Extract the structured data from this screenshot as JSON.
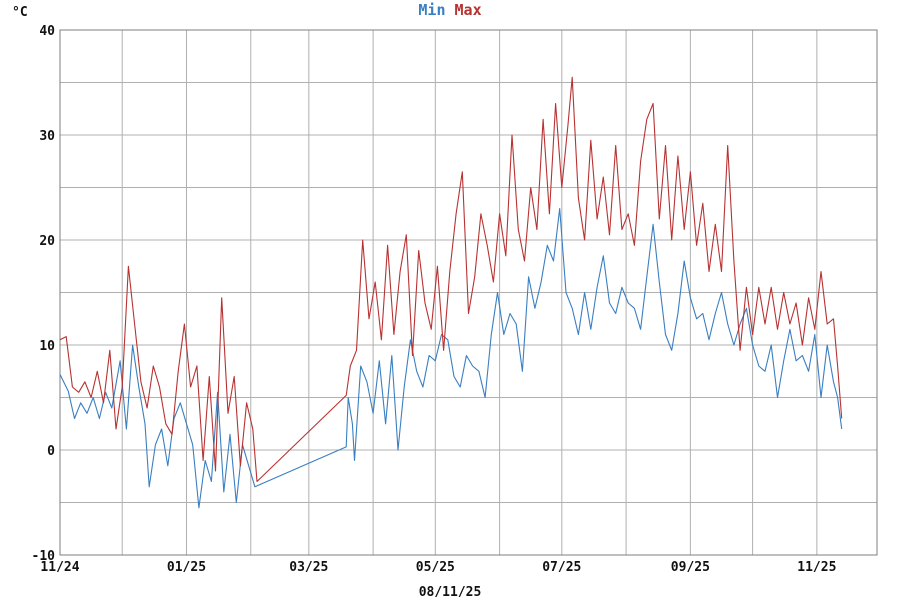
{
  "chart_data": {
    "type": "line",
    "title": "",
    "ylabel": "°C",
    "xlabel": "08/11/25",
    "ylim": [
      -10,
      40
    ],
    "y_ticks": [
      -10,
      0,
      10,
      20,
      30,
      40
    ],
    "xlim": [
      "2024-11-01",
      "2025-11-30"
    ],
    "x_ticks": [
      {
        "date": "2024-11-01",
        "label": "11/24"
      },
      {
        "date": "2025-01-01",
        "label": "01/25"
      },
      {
        "date": "2025-03-01",
        "label": "03/25"
      },
      {
        "date": "2025-05-01",
        "label": "05/25"
      },
      {
        "date": "2025-07-01",
        "label": "07/25"
      },
      {
        "date": "2025-09-01",
        "label": "09/25"
      },
      {
        "date": "2025-11-01",
        "label": "11/25"
      }
    ],
    "x_minor_ticks": [
      "2024-12-01",
      "2025-02-01",
      "2025-04-01",
      "2025-06-01",
      "2025-08-01",
      "2025-10-01",
      "2025-11-30"
    ],
    "grid": true,
    "legend": "top-center",
    "series": [
      {
        "name": "Min",
        "color": "#3a7fc1",
        "points": [
          [
            "2024-11-01",
            7.2
          ],
          [
            "2024-11-05",
            5.6
          ],
          [
            "2024-11-08",
            3.0
          ],
          [
            "2024-11-11",
            4.5
          ],
          [
            "2024-11-14",
            3.5
          ],
          [
            "2024-11-17",
            5.0
          ],
          [
            "2024-11-20",
            3.0
          ],
          [
            "2024-11-23",
            5.5
          ],
          [
            "2024-11-26",
            4.0
          ],
          [
            "2024-11-30",
            8.5
          ],
          [
            "2024-12-03",
            2.0
          ],
          [
            "2024-12-06",
            10.0
          ],
          [
            "2024-12-09",
            6.0
          ],
          [
            "2024-12-12",
            2.5
          ],
          [
            "2024-12-14",
            -3.5
          ],
          [
            "2024-12-17",
            0.5
          ],
          [
            "2024-12-20",
            2.0
          ],
          [
            "2024-12-23",
            -1.5
          ],
          [
            "2024-12-26",
            3.0
          ],
          [
            "2024-12-29",
            4.5
          ],
          [
            "2025-01-01",
            2.5
          ],
          [
            "2025-01-04",
            0.5
          ],
          [
            "2025-01-07",
            -5.5
          ],
          [
            "2025-01-10",
            -1.0
          ],
          [
            "2025-01-13",
            -3.0
          ],
          [
            "2025-01-16",
            5.5
          ],
          [
            "2025-01-19",
            -4.0
          ],
          [
            "2025-01-22",
            1.5
          ],
          [
            "2025-01-25",
            -5.0
          ],
          [
            "2025-01-28",
            0.5
          ],
          [
            "2025-01-31",
            -1.5
          ],
          [
            "2025-02-03",
            -3.5
          ],
          [
            "2025-03-19",
            0.3
          ],
          [
            "2025-03-20",
            5.0
          ],
          [
            "2025-03-22",
            2.5
          ],
          [
            "2025-03-23",
            -1.0
          ],
          [
            "2025-03-26",
            8.0
          ],
          [
            "2025-03-29",
            6.5
          ],
          [
            "2025-04-01",
            3.5
          ],
          [
            "2025-04-04",
            8.5
          ],
          [
            "2025-04-07",
            2.5
          ],
          [
            "2025-04-10",
            9.0
          ],
          [
            "2025-04-13",
            0.0
          ],
          [
            "2025-04-16",
            6.0
          ],
          [
            "2025-04-19",
            10.5
          ],
          [
            "2025-04-22",
            7.5
          ],
          [
            "2025-04-25",
            6.0
          ],
          [
            "2025-04-28",
            9.0
          ],
          [
            "2025-05-01",
            8.5
          ],
          [
            "2025-05-04",
            11.0
          ],
          [
            "2025-05-07",
            10.5
          ],
          [
            "2025-05-10",
            7.0
          ],
          [
            "2025-05-13",
            6.0
          ],
          [
            "2025-05-16",
            9.0
          ],
          [
            "2025-05-19",
            8.0
          ],
          [
            "2025-05-22",
            7.5
          ],
          [
            "2025-05-25",
            5.0
          ],
          [
            "2025-05-28",
            11.0
          ],
          [
            "2025-05-31",
            15.0
          ],
          [
            "2025-06-03",
            11.0
          ],
          [
            "2025-06-06",
            13.0
          ],
          [
            "2025-06-09",
            12.0
          ],
          [
            "2025-06-12",
            7.5
          ],
          [
            "2025-06-15",
            16.5
          ],
          [
            "2025-06-18",
            13.5
          ],
          [
            "2025-06-21",
            16.0
          ],
          [
            "2025-06-24",
            19.5
          ],
          [
            "2025-06-27",
            18.0
          ],
          [
            "2025-06-30",
            23.0
          ],
          [
            "2025-07-03",
            15.0
          ],
          [
            "2025-07-06",
            13.5
          ],
          [
            "2025-07-09",
            11.0
          ],
          [
            "2025-07-12",
            15.0
          ],
          [
            "2025-07-15",
            11.5
          ],
          [
            "2025-07-18",
            15.5
          ],
          [
            "2025-07-21",
            18.5
          ],
          [
            "2025-07-24",
            14.0
          ],
          [
            "2025-07-27",
            13.0
          ],
          [
            "2025-07-30",
            15.5
          ],
          [
            "2025-08-02",
            14.0
          ],
          [
            "2025-08-05",
            13.5
          ],
          [
            "2025-08-08",
            11.5
          ],
          [
            "2025-08-11",
            16.5
          ],
          [
            "2025-08-14",
            21.5
          ],
          [
            "2025-08-17",
            16.0
          ],
          [
            "2025-08-20",
            11.0
          ],
          [
            "2025-08-23",
            9.5
          ],
          [
            "2025-08-26",
            13.0
          ],
          [
            "2025-08-29",
            18.0
          ],
          [
            "2025-09-01",
            14.5
          ],
          [
            "2025-09-04",
            12.5
          ],
          [
            "2025-09-07",
            13.0
          ],
          [
            "2025-09-10",
            10.5
          ],
          [
            "2025-09-13",
            13.0
          ],
          [
            "2025-09-16",
            15.0
          ],
          [
            "2025-09-19",
            12.0
          ],
          [
            "2025-09-22",
            10.0
          ],
          [
            "2025-09-25",
            12.0
          ],
          [
            "2025-09-28",
            13.5
          ],
          [
            "2025-10-01",
            10.0
          ],
          [
            "2025-10-04",
            8.0
          ],
          [
            "2025-10-07",
            7.5
          ],
          [
            "2025-10-10",
            10.0
          ],
          [
            "2025-10-13",
            5.0
          ],
          [
            "2025-10-16",
            8.5
          ],
          [
            "2025-10-19",
            11.5
          ],
          [
            "2025-10-22",
            8.5
          ],
          [
            "2025-10-25",
            9.0
          ],
          [
            "2025-10-28",
            7.5
          ],
          [
            "2025-10-31",
            11.0
          ],
          [
            "2025-11-03",
            5.0
          ],
          [
            "2025-11-06",
            10.0
          ],
          [
            "2025-11-09",
            6.5
          ],
          [
            "2025-11-11",
            5.0
          ],
          [
            "2025-11-13",
            2.0
          ]
        ]
      },
      {
        "name": "Max",
        "color": "#b83232",
        "points": [
          [
            "2024-11-01",
            10.5
          ],
          [
            "2024-11-04",
            10.8
          ],
          [
            "2024-11-07",
            6.0
          ],
          [
            "2024-11-10",
            5.5
          ],
          [
            "2024-11-13",
            6.5
          ],
          [
            "2024-11-16",
            5.0
          ],
          [
            "2024-11-19",
            7.5
          ],
          [
            "2024-11-22",
            4.5
          ],
          [
            "2024-11-25",
            9.5
          ],
          [
            "2024-11-28",
            2.0
          ],
          [
            "2024-12-01",
            6.0
          ],
          [
            "2024-12-04",
            17.5
          ],
          [
            "2024-12-07",
            12.0
          ],
          [
            "2024-12-10",
            6.5
          ],
          [
            "2024-12-13",
            4.0
          ],
          [
            "2024-12-16",
            8.0
          ],
          [
            "2024-12-19",
            6.0
          ],
          [
            "2024-12-22",
            2.5
          ],
          [
            "2024-12-25",
            1.5
          ],
          [
            "2024-12-28",
            7.5
          ],
          [
            "2024-12-31",
            12.0
          ],
          [
            "2025-01-03",
            6.0
          ],
          [
            "2025-01-06",
            8.0
          ],
          [
            "2025-01-09",
            -1.0
          ],
          [
            "2025-01-12",
            7.0
          ],
          [
            "2025-01-15",
            -2.0
          ],
          [
            "2025-01-18",
            14.5
          ],
          [
            "2025-01-21",
            3.5
          ],
          [
            "2025-01-24",
            7.0
          ],
          [
            "2025-01-27",
            -1.5
          ],
          [
            "2025-01-30",
            4.5
          ],
          [
            "2025-02-02",
            2.0
          ],
          [
            "2025-02-04",
            -3.0
          ],
          [
            "2025-03-19",
            5.2
          ],
          [
            "2025-03-21",
            8.0
          ],
          [
            "2025-03-24",
            9.5
          ],
          [
            "2025-03-27",
            20.0
          ],
          [
            "2025-03-30",
            12.5
          ],
          [
            "2025-04-02",
            16.0
          ],
          [
            "2025-04-05",
            10.5
          ],
          [
            "2025-04-08",
            19.5
          ],
          [
            "2025-04-11",
            11.0
          ],
          [
            "2025-04-14",
            17.0
          ],
          [
            "2025-04-17",
            20.5
          ],
          [
            "2025-04-20",
            9.0
          ],
          [
            "2025-04-23",
            19.0
          ],
          [
            "2025-04-26",
            14.0
          ],
          [
            "2025-04-29",
            11.5
          ],
          [
            "2025-05-02",
            17.5
          ],
          [
            "2025-05-05",
            9.5
          ],
          [
            "2025-05-08",
            17.0
          ],
          [
            "2025-05-11",
            22.5
          ],
          [
            "2025-05-14",
            26.5
          ],
          [
            "2025-05-17",
            13.0
          ],
          [
            "2025-05-20",
            16.5
          ],
          [
            "2025-05-23",
            22.5
          ],
          [
            "2025-05-26",
            19.5
          ],
          [
            "2025-05-29",
            16.0
          ],
          [
            "2025-06-01",
            22.5
          ],
          [
            "2025-06-04",
            18.5
          ],
          [
            "2025-06-07",
            30.0
          ],
          [
            "2025-06-10",
            21.0
          ],
          [
            "2025-06-13",
            18.0
          ],
          [
            "2025-06-16",
            25.0
          ],
          [
            "2025-06-19",
            21.0
          ],
          [
            "2025-06-22",
            31.5
          ],
          [
            "2025-06-25",
            22.5
          ],
          [
            "2025-06-28",
            33.0
          ],
          [
            "2025-07-01",
            25.0
          ],
          [
            "2025-07-04",
            31.0
          ],
          [
            "2025-07-06",
            35.5
          ],
          [
            "2025-07-09",
            24.0
          ],
          [
            "2025-07-12",
            20.0
          ],
          [
            "2025-07-15",
            29.5
          ],
          [
            "2025-07-18",
            22.0
          ],
          [
            "2025-07-21",
            26.0
          ],
          [
            "2025-07-24",
            20.5
          ],
          [
            "2025-07-27",
            29.0
          ],
          [
            "2025-07-30",
            21.0
          ],
          [
            "2025-08-02",
            22.5
          ],
          [
            "2025-08-05",
            19.5
          ],
          [
            "2025-08-08",
            27.5
          ],
          [
            "2025-08-11",
            31.5
          ],
          [
            "2025-08-14",
            33.0
          ],
          [
            "2025-08-17",
            22.0
          ],
          [
            "2025-08-20",
            29.0
          ],
          [
            "2025-08-23",
            20.0
          ],
          [
            "2025-08-26",
            28.0
          ],
          [
            "2025-08-29",
            21.0
          ],
          [
            "2025-09-01",
            26.5
          ],
          [
            "2025-09-04",
            19.5
          ],
          [
            "2025-09-07",
            23.5
          ],
          [
            "2025-09-10",
            17.0
          ],
          [
            "2025-09-13",
            21.5
          ],
          [
            "2025-09-16",
            17.0
          ],
          [
            "2025-09-19",
            29.0
          ],
          [
            "2025-09-22",
            18.0
          ],
          [
            "2025-09-25",
            9.5
          ],
          [
            "2025-09-28",
            15.5
          ],
          [
            "2025-10-01",
            11.0
          ],
          [
            "2025-10-04",
            15.5
          ],
          [
            "2025-10-07",
            12.0
          ],
          [
            "2025-10-10",
            15.5
          ],
          [
            "2025-10-13",
            11.5
          ],
          [
            "2025-10-16",
            15.0
          ],
          [
            "2025-10-19",
            12.0
          ],
          [
            "2025-10-22",
            14.0
          ],
          [
            "2025-10-25",
            10.0
          ],
          [
            "2025-10-28",
            14.5
          ],
          [
            "2025-10-31",
            11.5
          ],
          [
            "2025-11-03",
            17.0
          ],
          [
            "2025-11-06",
            12.0
          ],
          [
            "2025-11-09",
            12.5
          ],
          [
            "2025-11-11",
            8.0
          ],
          [
            "2025-11-13",
            3.0
          ]
        ]
      }
    ]
  }
}
